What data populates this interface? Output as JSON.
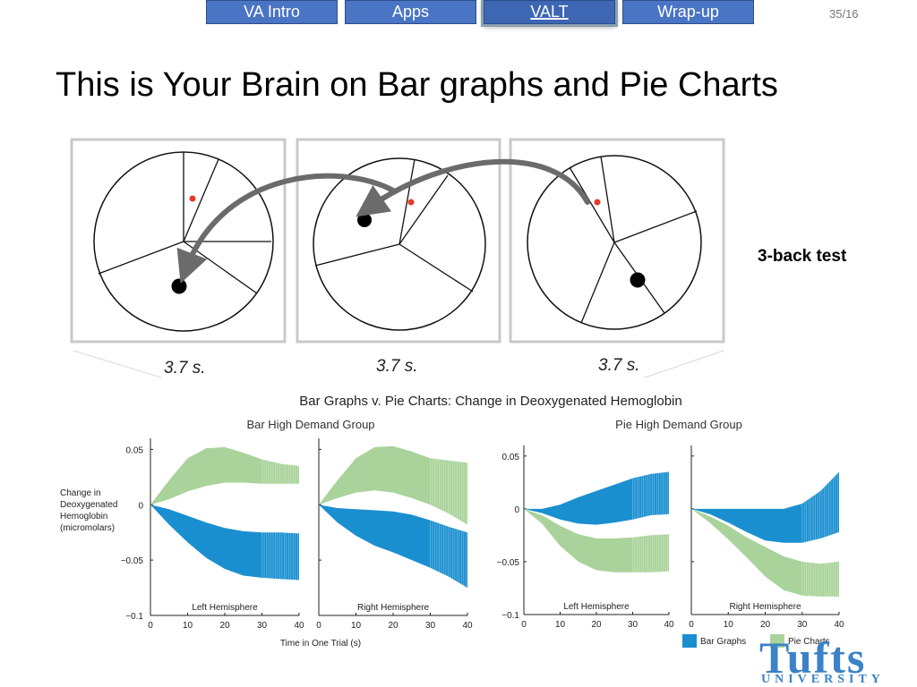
{
  "nav": {
    "tabs": [
      {
        "label": "VA Intro"
      },
      {
        "label": "Apps"
      },
      {
        "label": "VALT"
      },
      {
        "label": "Wrap-up"
      }
    ],
    "active_tab": "VALT",
    "slide_number": "35/16"
  },
  "slide": {
    "title": "This is Your Brain on Bar graphs and Pie Charts"
  },
  "stimulus": {
    "trial_durations": [
      "3.7 s.",
      "3.7 s.",
      "3.7 s."
    ],
    "test_label": "3-back test"
  },
  "logo": {
    "word": "Tufts",
    "sub": "UNIVERSITY"
  },
  "colors": {
    "bar_graphs": "#1a8fd0",
    "pie_charts": "#a9d39a",
    "nav_tab": "#4a74c4",
    "target_dot": "#e83a2a",
    "arrow": "#6b6b6b"
  },
  "chart_data": {
    "type": "area",
    "title": "Bar Graphs v. Pie Charts: Change in Deoxygenated Hemoglobin",
    "ylabel": "Change in Deoxygenated Hemoglobin (micromolars)",
    "xlabel": "Time in One Trial (s)",
    "xlim": [
      0,
      40
    ],
    "ylim": [
      -0.1,
      0.06
    ],
    "yticks": [
      0.05,
      0,
      -0.05,
      -0.1
    ],
    "ytick_labels": [
      "0.05",
      "0",
      "−0.05",
      "−0.1"
    ],
    "xticks": [
      0,
      10,
      20,
      30,
      40
    ],
    "legend": {
      "placement": "bottom-right",
      "entries": [
        {
          "name": "Bar Graphs",
          "color": "#1a8fd0"
        },
        {
          "name": "Pie Charts",
          "color": "#a9d39a"
        }
      ]
    },
    "groups": [
      {
        "name": "Bar High Demand Group",
        "panels": [
          {
            "name": "Left Hemisphere",
            "series": [
              {
                "name": "Pie Charts",
                "x": [
                  0,
                  5,
                  10,
                  15,
                  20,
                  25,
                  30,
                  35,
                  40
                ],
                "upper": [
                  0,
                  0.022,
                  0.042,
                  0.051,
                  0.052,
                  0.047,
                  0.041,
                  0.037,
                  0.035
                ],
                "lower": [
                  0,
                  0.005,
                  0.012,
                  0.017,
                  0.02,
                  0.02,
                  0.019,
                  0.019,
                  0.019
                ]
              },
              {
                "name": "Bar Graphs",
                "x": [
                  0,
                  5,
                  10,
                  15,
                  20,
                  25,
                  30,
                  35,
                  40
                ],
                "upper": [
                  0,
                  -0.004,
                  -0.01,
                  -0.016,
                  -0.021,
                  -0.024,
                  -0.025,
                  -0.025,
                  -0.026
                ],
                "lower": [
                  0,
                  -0.018,
                  -0.034,
                  -0.048,
                  -0.058,
                  -0.064,
                  -0.066,
                  -0.067,
                  -0.068
                ]
              }
            ]
          },
          {
            "name": "Right Hemisphere",
            "series": [
              {
                "name": "Pie Charts",
                "x": [
                  0,
                  5,
                  10,
                  15,
                  20,
                  25,
                  30,
                  35,
                  40
                ],
                "upper": [
                  0,
                  0.022,
                  0.042,
                  0.052,
                  0.053,
                  0.048,
                  0.042,
                  0.04,
                  0.038
                ],
                "lower": [
                  0,
                  0.006,
                  0.011,
                  0.013,
                  0.011,
                  0.006,
                  0.0,
                  -0.008,
                  -0.018
                ]
              },
              {
                "name": "Bar Graphs",
                "x": [
                  0,
                  5,
                  10,
                  15,
                  20,
                  25,
                  30,
                  35,
                  40
                ],
                "upper": [
                  0,
                  -0.003,
                  -0.004,
                  -0.005,
                  -0.006,
                  -0.009,
                  -0.014,
                  -0.02,
                  -0.025
                ],
                "lower": [
                  0,
                  -0.016,
                  -0.028,
                  -0.037,
                  -0.043,
                  -0.05,
                  -0.057,
                  -0.065,
                  -0.075
                ]
              }
            ]
          }
        ]
      },
      {
        "name": "Pie High Demand Group",
        "panels": [
          {
            "name": "Left Hemisphere",
            "series": [
              {
                "name": "Bar Graphs",
                "x": [
                  0,
                  5,
                  10,
                  15,
                  20,
                  25,
                  30,
                  35,
                  40
                ],
                "upper": [
                  0,
                  0,
                  0.004,
                  0.011,
                  0.017,
                  0.023,
                  0.029,
                  0.033,
                  0.035
                ],
                "lower": [
                  0,
                  -0.004,
                  -0.01,
                  -0.014,
                  -0.015,
                  -0.013,
                  -0.01,
                  -0.006,
                  -0.005
                ]
              },
              {
                "name": "Pie Charts",
                "x": [
                  0,
                  5,
                  10,
                  15,
                  20,
                  25,
                  30,
                  35,
                  40
                ],
                "upper": [
                  0,
                  -0.006,
                  -0.016,
                  -0.024,
                  -0.028,
                  -0.028,
                  -0.027,
                  -0.025,
                  -0.024
                ],
                "lower": [
                  0,
                  -0.014,
                  -0.035,
                  -0.05,
                  -0.058,
                  -0.06,
                  -0.06,
                  -0.06,
                  -0.059
                ]
              }
            ]
          },
          {
            "name": "Right Hemisphere",
            "series": [
              {
                "name": "Bar Graphs",
                "x": [
                  0,
                  5,
                  10,
                  15,
                  20,
                  25,
                  30,
                  35,
                  40
                ],
                "upper": [
                  0,
                  0,
                  0,
                  0,
                  0,
                  0,
                  0.005,
                  0.017,
                  0.035
                ],
                "lower": [
                  0,
                  -0.005,
                  -0.013,
                  -0.022,
                  -0.03,
                  -0.032,
                  -0.032,
                  -0.028,
                  -0.022
                ]
              },
              {
                "name": "Pie Charts",
                "x": [
                  0,
                  5,
                  10,
                  15,
                  20,
                  25,
                  30,
                  35,
                  40
                ],
                "upper": [
                  0,
                  -0.007,
                  -0.016,
                  -0.027,
                  -0.036,
                  -0.045,
                  -0.05,
                  -0.052,
                  -0.05
                ],
                "lower": [
                  0,
                  -0.013,
                  -0.029,
                  -0.046,
                  -0.064,
                  -0.077,
                  -0.082,
                  -0.083,
                  -0.083
                ]
              }
            ]
          }
        ]
      }
    ]
  }
}
